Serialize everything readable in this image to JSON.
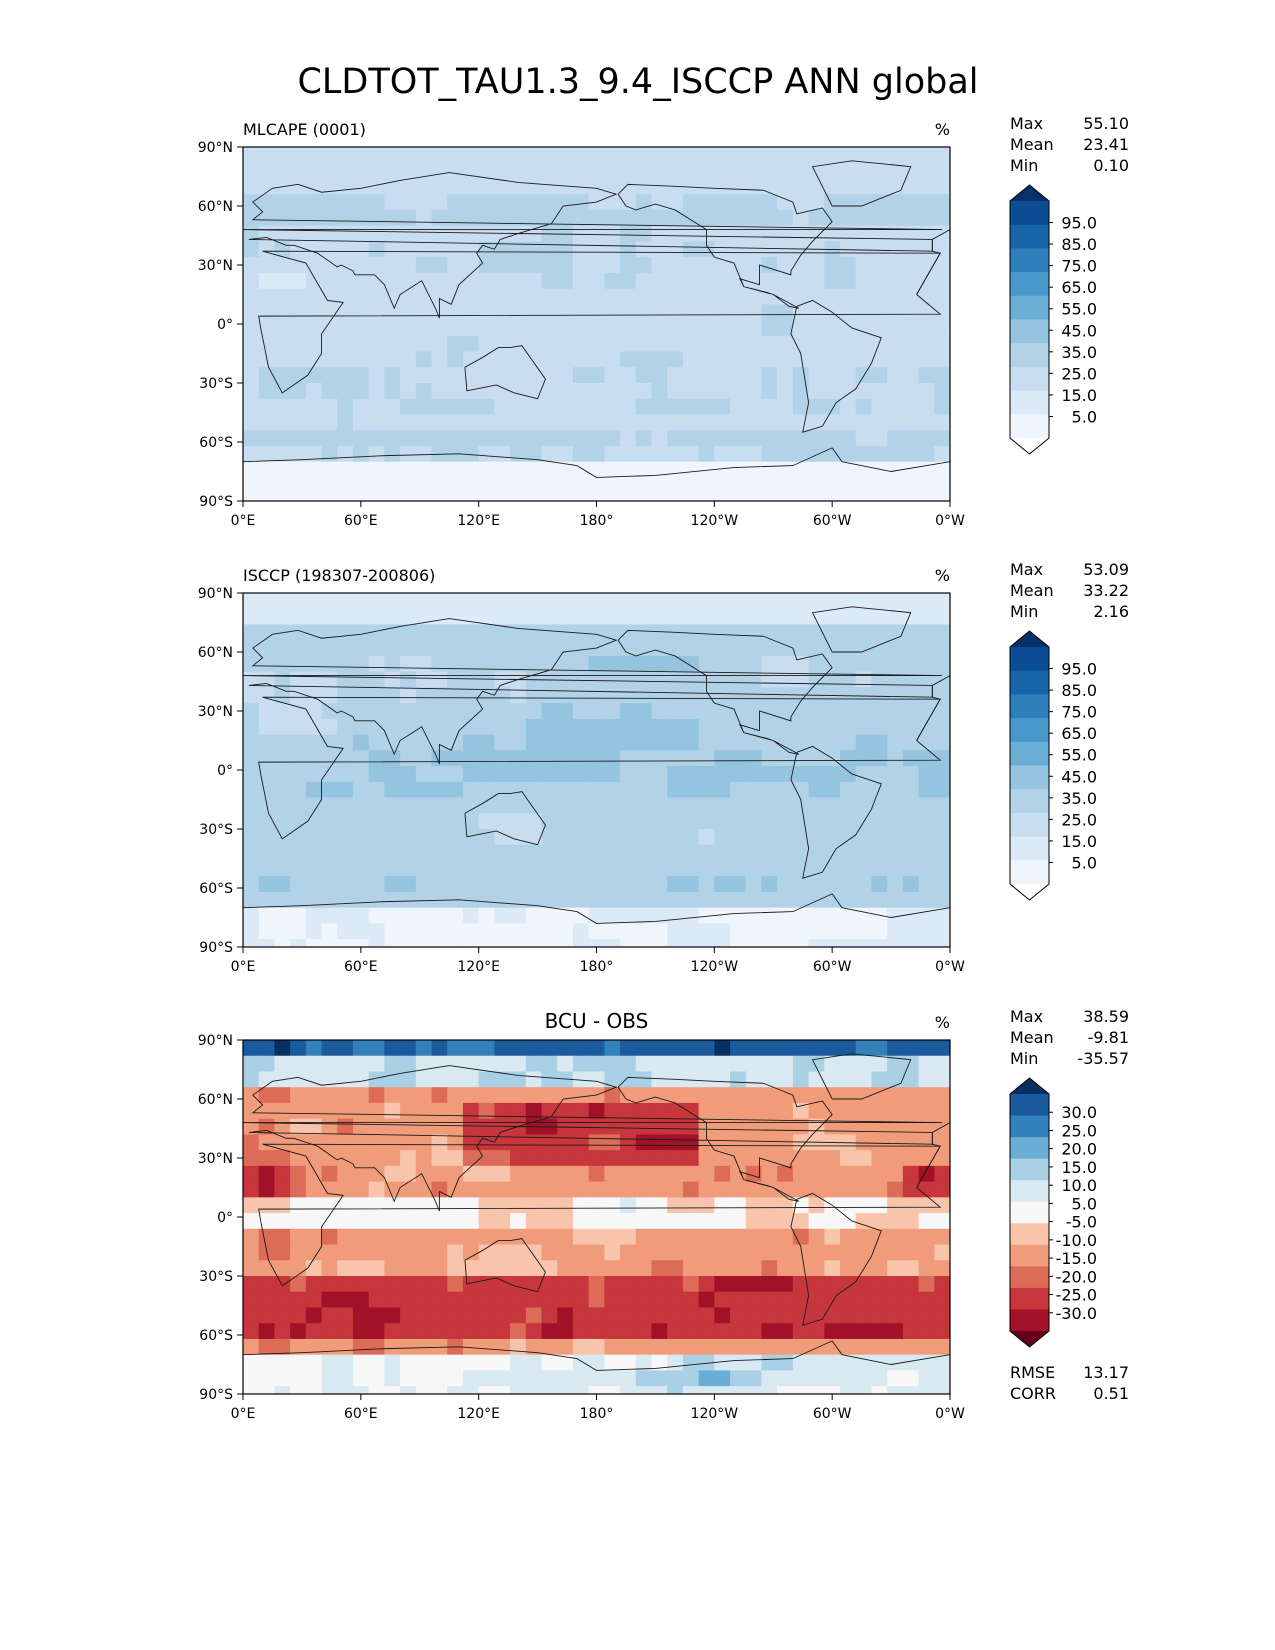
{
  "title": "CLDTOT_TAU1.3_9.4_ISCCP ANN global",
  "lat_ticks": [
    "90°N",
    "60°N",
    "30°N",
    "0°",
    "30°S",
    "60°S",
    "90°S"
  ],
  "lon_ticks": [
    "0°E",
    "60°E",
    "120°E",
    "180°",
    "120°W",
    "60°W",
    "0°W"
  ],
  "colors": {
    "blues": [
      "#ffffff",
      "#eef5fc",
      "#dce9f6",
      "#c9ddf0",
      "#b2d2e8",
      "#94c4df",
      "#6baed6",
      "#4a98c9",
      "#2e7ebc",
      "#1764ab",
      "#0b4d94",
      "#08306b"
    ],
    "diverging": [
      "#67001f",
      "#a11228",
      "#c7353d",
      "#dc6b58",
      "#f09c7b",
      "#f8c4ab",
      "#f7f7f7",
      "#d8e9f1",
      "#a9d0e5",
      "#6aaed5",
      "#3381bb",
      "#1b5a9c",
      "#053061"
    ],
    "land": "#f2f7fb",
    "coast": "#1a1a1a"
  },
  "panels": [
    {
      "id": "model",
      "left_title": "MLCAPE (0001)",
      "center_title": "",
      "units": "%",
      "stats": [
        [
          "Max",
          "55.10"
        ],
        [
          "Mean",
          "23.41"
        ],
        [
          "Min",
          "0.10"
        ]
      ],
      "extra_stats": [],
      "levels": [
        "95.0",
        "85.0",
        "75.0",
        "65.0",
        "55.0",
        "45.0",
        "35.0",
        "25.0",
        "15.0",
        "5.0"
      ],
      "cmap": "blues"
    },
    {
      "id": "obs",
      "left_title": "ISCCP (198307-200806)",
      "center_title": "",
      "units": "%",
      "stats": [
        [
          "Max",
          "53.09"
        ],
        [
          "Mean",
          "33.22"
        ],
        [
          "Min",
          "2.16"
        ]
      ],
      "extra_stats": [],
      "levels": [
        "95.0",
        "85.0",
        "75.0",
        "65.0",
        "55.0",
        "45.0",
        "35.0",
        "25.0",
        "15.0",
        "5.0"
      ],
      "cmap": "blues"
    },
    {
      "id": "diff",
      "left_title": "",
      "center_title": "BCU - OBS",
      "units": "%",
      "stats": [
        [
          "Max",
          "38.59"
        ],
        [
          "Mean",
          "-9.81"
        ],
        [
          "Min",
          "-35.57"
        ]
      ],
      "extra_stats": [
        [
          "RMSE",
          "13.17"
        ],
        [
          "CORR",
          "0.51"
        ]
      ],
      "levels": [
        "30.0",
        "25.0",
        "20.0",
        "15.0",
        "10.0",
        "5.0",
        "-5.0",
        "-10.0",
        "-15.0",
        "-20.0",
        "-25.0",
        "-30.0"
      ],
      "cmap": "diverging"
    }
  ]
}
